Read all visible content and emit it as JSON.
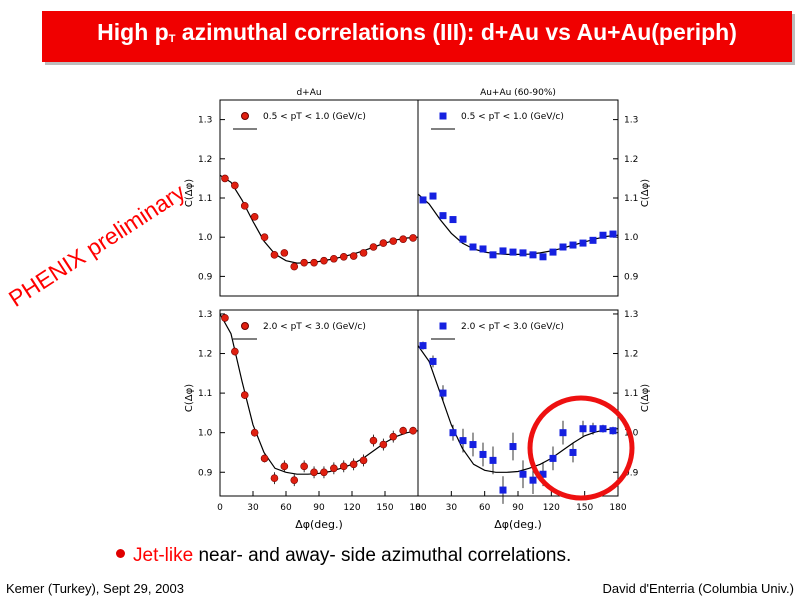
{
  "slide": {
    "title_pre": "High p",
    "title_sub": "T",
    "title_post": " azimuthal correlations (III): d+Au vs Au+Au(periph)",
    "watermark": "PHENIX preliminary",
    "bullet_highlight": "Jet-like",
    "bullet_rest": " near- and away- side azimuthal correlations.",
    "footer_left": "Kemer (Turkey), Sept 29, 2003",
    "footer_right": "David d'Enterria (Columbia Univ.)"
  },
  "colors": {
    "title_bg": "#f00000",
    "dau_marker": "#e02010",
    "auau_marker": "#1520e0",
    "highlight_circle": "#ee1010"
  },
  "chart_data": [
    {
      "type": "scatter",
      "panel": "top-left",
      "title": "d+Au",
      "ylabel": "C(Δφ)",
      "legend": "0.5 < pT < 1.0 (GeV/c)",
      "xlim": [
        0,
        180
      ],
      "ylim": [
        0.85,
        1.35
      ],
      "yticks": [
        "0.9",
        "1.0",
        "1.1",
        "1.2",
        "1.3"
      ],
      "series": [
        {
          "marker": "circle",
          "x": [
            4.5,
            13.5,
            22.5,
            31.5,
            40.5,
            49.5,
            58.5,
            67.5,
            76.5,
            85.5,
            94.5,
            103.5,
            112.5,
            121.5,
            130.5,
            139.5,
            148.5,
            157.5,
            166.5,
            175.5
          ],
          "y": [
            1.15,
            1.132,
            1.08,
            1.052,
            1.0,
            0.955,
            0.96,
            0.925,
            0.935,
            0.935,
            0.94,
            0.945,
            0.95,
            0.952,
            0.96,
            0.975,
            0.985,
            0.99,
            0.995,
            0.998
          ]
        }
      ],
      "fit": {
        "x": [
          0,
          10,
          20,
          30,
          40,
          50,
          60,
          70,
          80,
          90,
          100,
          110,
          120,
          130,
          140,
          150,
          160,
          170,
          180
        ],
        "y": [
          1.158,
          1.14,
          1.095,
          1.04,
          0.99,
          0.957,
          0.94,
          0.934,
          0.935,
          0.938,
          0.943,
          0.949,
          0.956,
          0.965,
          0.975,
          0.985,
          0.993,
          0.998,
          1.0
        ]
      }
    },
    {
      "type": "scatter",
      "panel": "top-right",
      "title": "Au+Au (60-90%)",
      "ylabel": "C(Δφ)",
      "legend": "0.5 < pT < 1.0 (GeV/c)",
      "xlim": [
        0,
        180
      ],
      "ylim": [
        0.85,
        1.35
      ],
      "yticks": [
        "0.9",
        "1.0",
        "1.1",
        "1.2",
        "1.3"
      ],
      "series": [
        {
          "marker": "square",
          "x": [
            4.5,
            13.5,
            22.5,
            31.5,
            40.5,
            49.5,
            58.5,
            67.5,
            76.5,
            85.5,
            94.5,
            103.5,
            112.5,
            121.5,
            130.5,
            139.5,
            148.5,
            157.5,
            166.5,
            175.5
          ],
          "y": [
            1.095,
            1.105,
            1.055,
            1.045,
            0.995,
            0.975,
            0.97,
            0.955,
            0.965,
            0.962,
            0.96,
            0.955,
            0.95,
            0.962,
            0.975,
            0.98,
            0.985,
            0.992,
            1.005,
            1.008
          ]
        }
      ],
      "fit": {
        "x": [
          0,
          10,
          20,
          30,
          40,
          50,
          60,
          70,
          80,
          90,
          100,
          110,
          120,
          130,
          140,
          150,
          160,
          170,
          180
        ],
        "y": [
          1.11,
          1.085,
          1.045,
          1.01,
          0.985,
          0.97,
          0.962,
          0.958,
          0.956,
          0.956,
          0.957,
          0.96,
          0.965,
          0.972,
          0.98,
          0.988,
          0.996,
          1.002,
          1.005
        ]
      }
    },
    {
      "type": "scatter",
      "panel": "bottom-left",
      "ylabel": "C(Δφ)",
      "xlabel": "Δφ(deg.)",
      "legend": "2.0 < pT < 3.0 (GeV/c)",
      "xlim": [
        0,
        180
      ],
      "ylim": [
        0.84,
        1.31
      ],
      "xticks": [
        "0",
        "30",
        "60",
        "90",
        "120",
        "150",
        "180"
      ],
      "yticks": [
        "0.9",
        "1.0",
        "1.1",
        "1.2",
        "1.3"
      ],
      "series": [
        {
          "marker": "circle",
          "x": [
            4.5,
            13.5,
            22.5,
            31.5,
            40.5,
            49.5,
            58.5,
            67.5,
            76.5,
            85.5,
            94.5,
            103.5,
            112.5,
            121.5,
            130.5,
            139.5,
            148.5,
            157.5,
            166.5,
            175.5
          ],
          "y": [
            1.29,
            1.205,
            1.095,
            1.0,
            0.935,
            0.885,
            0.915,
            0.88,
            0.915,
            0.9,
            0.9,
            0.91,
            0.915,
            0.92,
            0.93,
            0.98,
            0.97,
            0.99,
            1.005,
            1.005
          ],
          "err": [
            0.01,
            0.01,
            0.01,
            0.01,
            0.01,
            0.015,
            0.015,
            0.015,
            0.015,
            0.015,
            0.015,
            0.015,
            0.015,
            0.015,
            0.015,
            0.015,
            0.015,
            0.015,
            0.01,
            0.01
          ]
        }
      ],
      "fit": {
        "x": [
          0,
          10,
          20,
          30,
          40,
          50,
          60,
          70,
          80,
          90,
          100,
          110,
          120,
          130,
          140,
          150,
          160,
          170,
          180
        ],
        "y": [
          1.3,
          1.25,
          1.13,
          1.02,
          0.95,
          0.91,
          0.9,
          0.895,
          0.895,
          0.897,
          0.902,
          0.91,
          0.92,
          0.935,
          0.955,
          0.975,
          0.99,
          1.0,
          1.005
        ]
      }
    },
    {
      "type": "scatter",
      "panel": "bottom-right",
      "ylabel": "C(Δφ)",
      "xlabel": "Δφ(deg.)",
      "legend": "2.0 < pT < 3.0 (GeV/c)",
      "xlim": [
        0,
        180
      ],
      "ylim": [
        0.84,
        1.31
      ],
      "xticks": [
        "0",
        "30",
        "60",
        "90",
        "120",
        "150",
        "180"
      ],
      "yticks": [
        "0.9",
        "1.0",
        "1.1",
        "1.2",
        "1.3"
      ],
      "series": [
        {
          "marker": "square",
          "x": [
            4.5,
            13.5,
            22.5,
            31.5,
            40.5,
            49.5,
            58.5,
            67.5,
            76.5,
            85.5,
            94.5,
            103.5,
            112.5,
            121.5,
            130.5,
            139.5,
            148.5,
            157.5,
            166.5,
            175.5
          ],
          "y": [
            1.22,
            1.18,
            1.1,
            1.0,
            0.98,
            0.97,
            0.945,
            0.93,
            0.855,
            0.965,
            0.895,
            0.88,
            0.895,
            0.935,
            1.0,
            0.95,
            1.01,
            1.01,
            1.01,
            1.005
          ],
          "err": [
            0.01,
            0.015,
            0.02,
            0.02,
            0.03,
            0.03,
            0.03,
            0.035,
            0.035,
            0.035,
            0.035,
            0.035,
            0.03,
            0.03,
            0.03,
            0.025,
            0.02,
            0.015,
            0.01,
            0.01
          ]
        }
      ],
      "fit": {
        "x": [
          0,
          10,
          20,
          30,
          40,
          50,
          60,
          70,
          80,
          90,
          100,
          110,
          120,
          130,
          140,
          150,
          160,
          170,
          180
        ],
        "y": [
          1.22,
          1.18,
          1.1,
          1.02,
          0.96,
          0.92,
          0.905,
          0.9,
          0.9,
          0.902,
          0.91,
          0.92,
          0.935,
          0.955,
          0.975,
          0.992,
          1.002,
          1.008,
          1.01
        ]
      }
    }
  ]
}
